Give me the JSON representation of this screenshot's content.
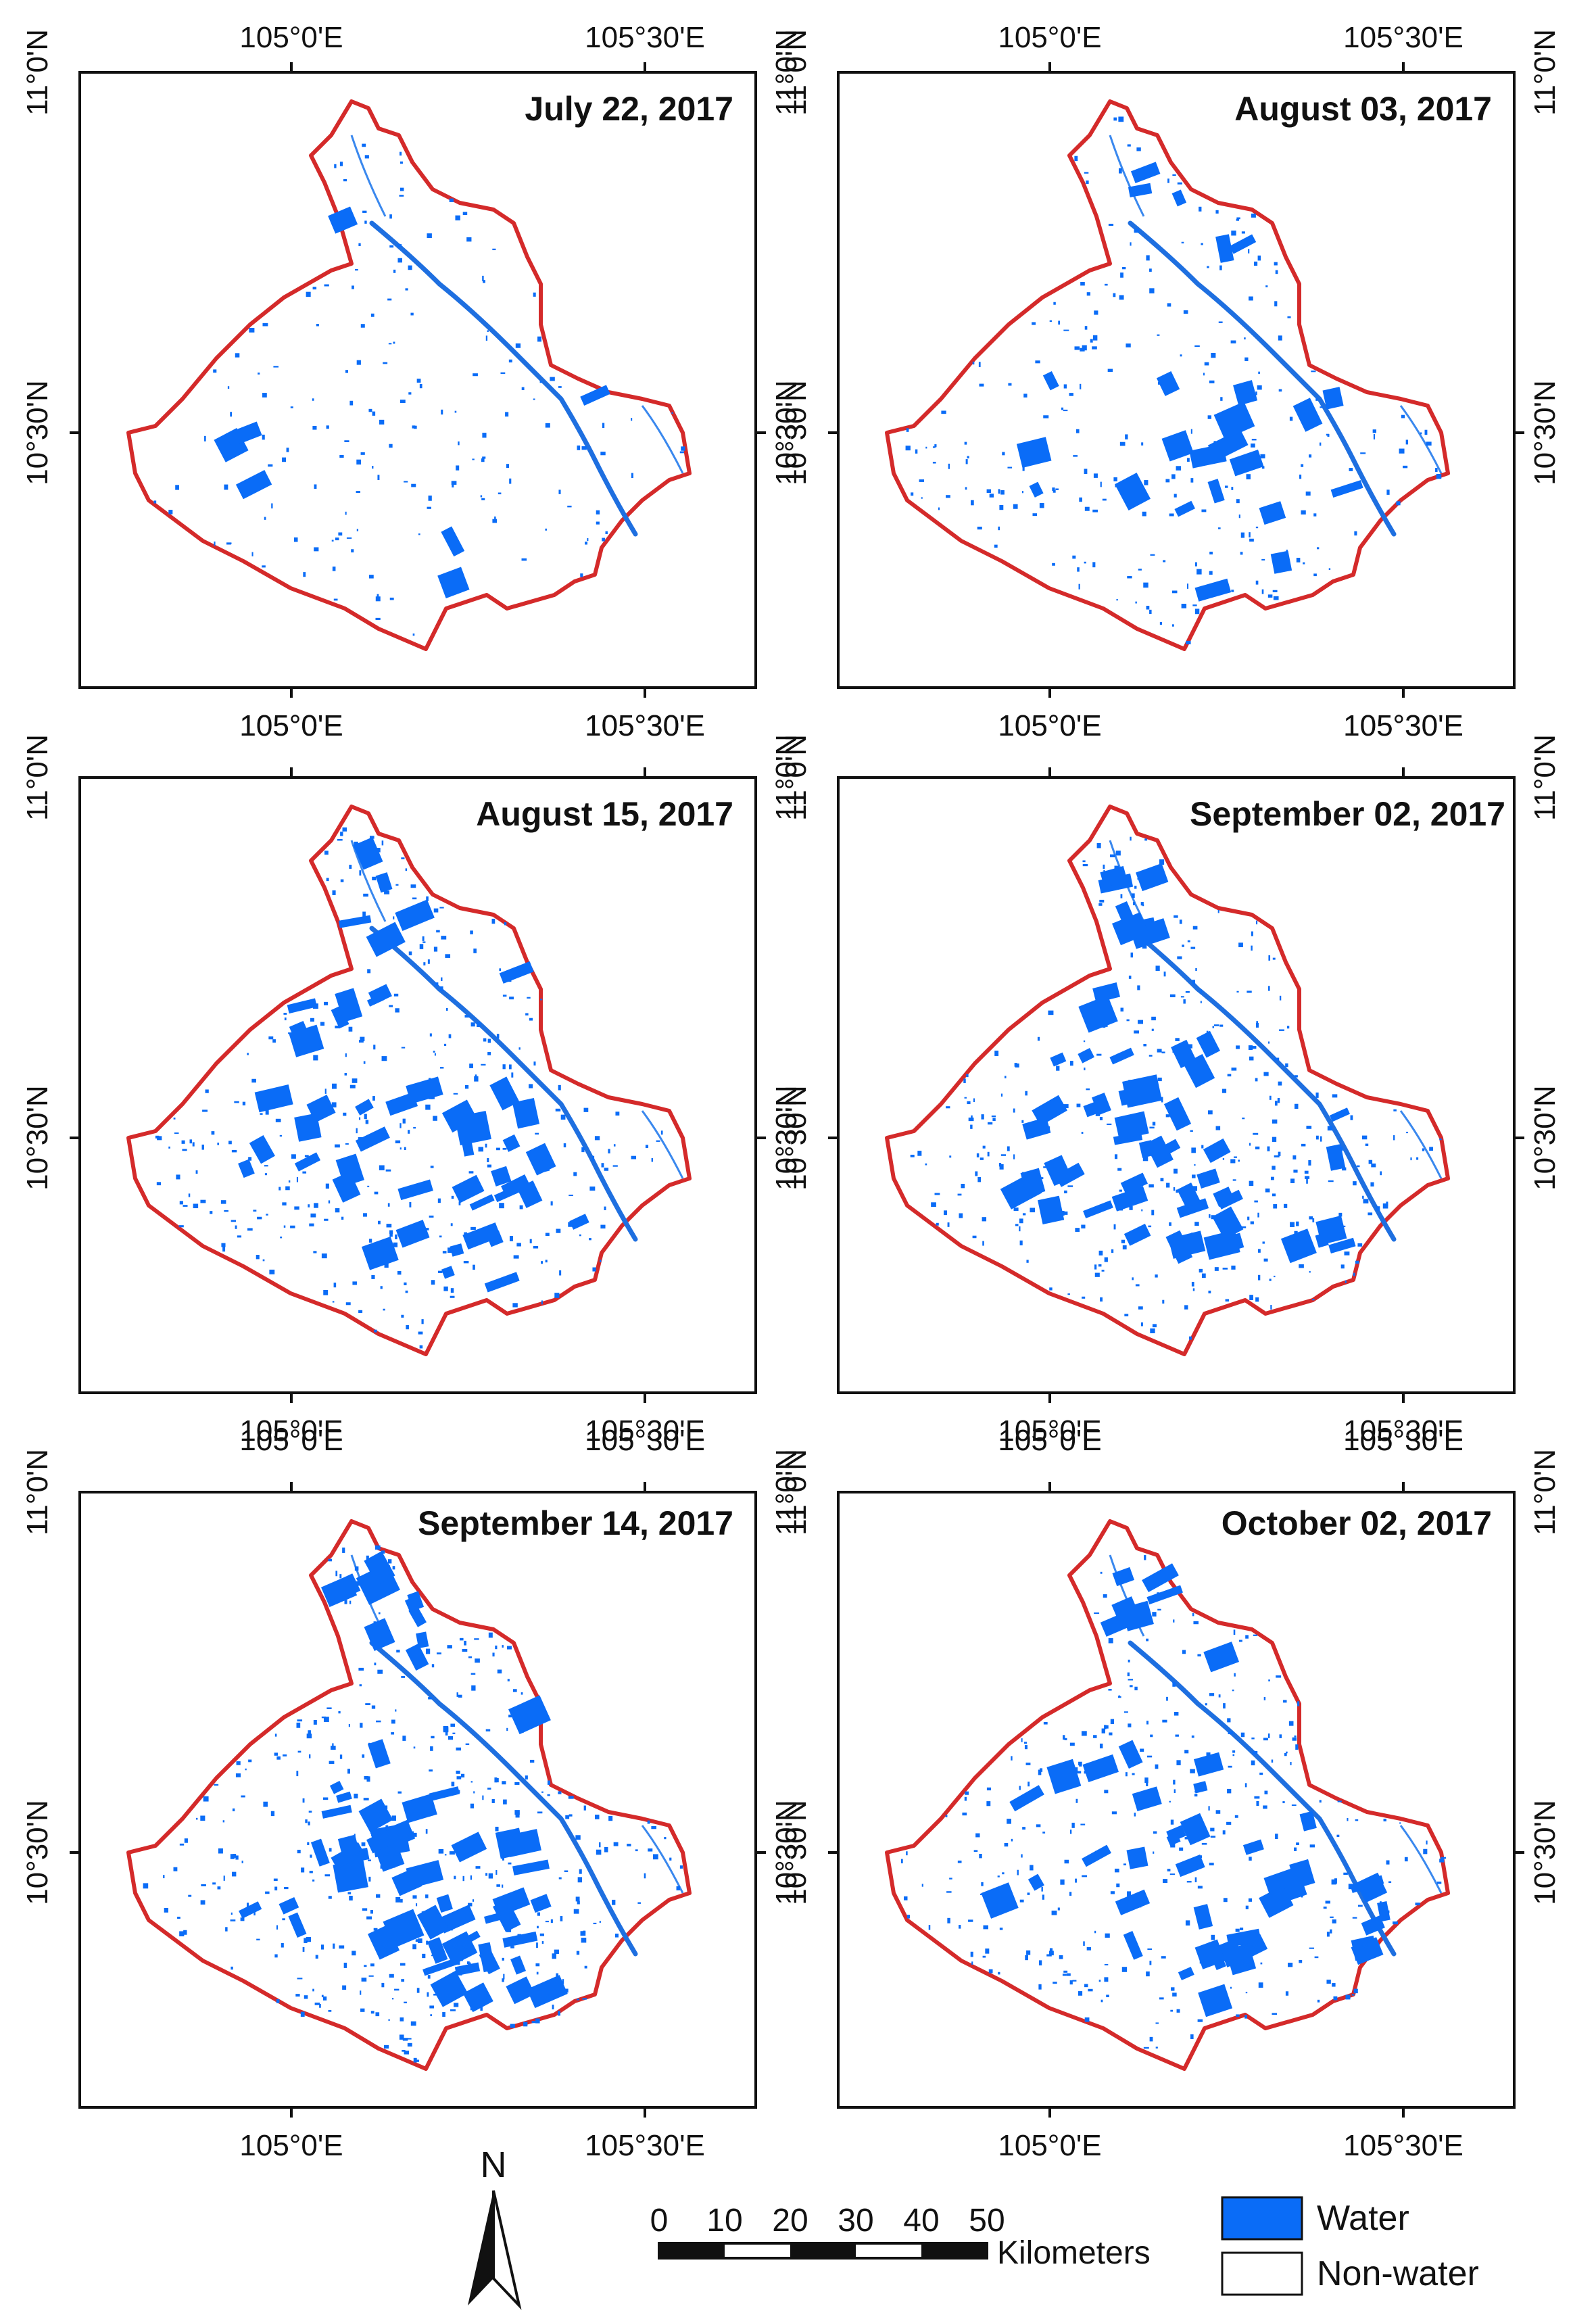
{
  "axis_labels": {
    "lon_left": "105°0'E",
    "lon_right": "105°30'E",
    "lat_top": "11°0'N",
    "lat_mid": "10°30'N"
  },
  "panels": [
    {
      "date": "July 22, 2017",
      "flood_level": 0.08
    },
    {
      "date": "August 03, 2017",
      "flood_level": 0.3
    },
    {
      "date": "August 15, 2017",
      "flood_level": 0.55
    },
    {
      "date": "September 02, 2017",
      "flood_level": 0.62
    },
    {
      "date": "September 14, 2017",
      "flood_level": 0.68
    },
    {
      "date": "October 02, 2017",
      "flood_level": 0.5
    }
  ],
  "north_arrow": {
    "label": "N"
  },
  "scale_bar": {
    "ticks": [
      "0",
      "10",
      "20",
      "30",
      "40",
      "50"
    ],
    "unit": "Kilometers"
  },
  "legend": {
    "items": [
      {
        "label": "Water",
        "color": "#0a6cf7"
      },
      {
        "label": "Non-water",
        "color": "#ffffff"
      }
    ]
  },
  "colors": {
    "boundary": "#d42a2a",
    "water": "#0a6cf7"
  }
}
